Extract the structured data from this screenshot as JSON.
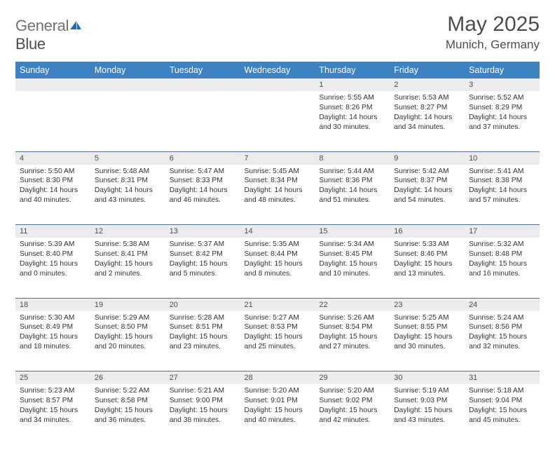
{
  "brand": {
    "general": "General",
    "blue": "Blue"
  },
  "title": "May 2025",
  "location": "Munich, Germany",
  "colors": {
    "header_bg": "#3e82c4",
    "header_text": "#ffffff",
    "daynum_bg": "#ececec",
    "text": "#333333",
    "title_text": "#4b4e51",
    "row_border": "#4d6fa0",
    "logo_blue": "#1e6fb8"
  },
  "weekday_labels": [
    "Sunday",
    "Monday",
    "Tuesday",
    "Wednesday",
    "Thursday",
    "Friday",
    "Saturday"
  ],
  "weeks": [
    [
      null,
      null,
      null,
      null,
      {
        "d": "1",
        "sr": "5:55 AM",
        "ss": "8:26 PM",
        "dl": "14 hours and 30 minutes."
      },
      {
        "d": "2",
        "sr": "5:53 AM",
        "ss": "8:27 PM",
        "dl": "14 hours and 34 minutes."
      },
      {
        "d": "3",
        "sr": "5:52 AM",
        "ss": "8:29 PM",
        "dl": "14 hours and 37 minutes."
      }
    ],
    [
      {
        "d": "4",
        "sr": "5:50 AM",
        "ss": "8:30 PM",
        "dl": "14 hours and 40 minutes."
      },
      {
        "d": "5",
        "sr": "5:48 AM",
        "ss": "8:31 PM",
        "dl": "14 hours and 43 minutes."
      },
      {
        "d": "6",
        "sr": "5:47 AM",
        "ss": "8:33 PM",
        "dl": "14 hours and 46 minutes."
      },
      {
        "d": "7",
        "sr": "5:45 AM",
        "ss": "8:34 PM",
        "dl": "14 hours and 48 minutes."
      },
      {
        "d": "8",
        "sr": "5:44 AM",
        "ss": "8:36 PM",
        "dl": "14 hours and 51 minutes."
      },
      {
        "d": "9",
        "sr": "5:42 AM",
        "ss": "8:37 PM",
        "dl": "14 hours and 54 minutes."
      },
      {
        "d": "10",
        "sr": "5:41 AM",
        "ss": "8:38 PM",
        "dl": "14 hours and 57 minutes."
      }
    ],
    [
      {
        "d": "11",
        "sr": "5:39 AM",
        "ss": "8:40 PM",
        "dl": "15 hours and 0 minutes."
      },
      {
        "d": "12",
        "sr": "5:38 AM",
        "ss": "8:41 PM",
        "dl": "15 hours and 2 minutes."
      },
      {
        "d": "13",
        "sr": "5:37 AM",
        "ss": "8:42 PM",
        "dl": "15 hours and 5 minutes."
      },
      {
        "d": "14",
        "sr": "5:35 AM",
        "ss": "8:44 PM",
        "dl": "15 hours and 8 minutes."
      },
      {
        "d": "15",
        "sr": "5:34 AM",
        "ss": "8:45 PM",
        "dl": "15 hours and 10 minutes."
      },
      {
        "d": "16",
        "sr": "5:33 AM",
        "ss": "8:46 PM",
        "dl": "15 hours and 13 minutes."
      },
      {
        "d": "17",
        "sr": "5:32 AM",
        "ss": "8:48 PM",
        "dl": "15 hours and 16 minutes."
      }
    ],
    [
      {
        "d": "18",
        "sr": "5:30 AM",
        "ss": "8:49 PM",
        "dl": "15 hours and 18 minutes."
      },
      {
        "d": "19",
        "sr": "5:29 AM",
        "ss": "8:50 PM",
        "dl": "15 hours and 20 minutes."
      },
      {
        "d": "20",
        "sr": "5:28 AM",
        "ss": "8:51 PM",
        "dl": "15 hours and 23 minutes."
      },
      {
        "d": "21",
        "sr": "5:27 AM",
        "ss": "8:53 PM",
        "dl": "15 hours and 25 minutes."
      },
      {
        "d": "22",
        "sr": "5:26 AM",
        "ss": "8:54 PM",
        "dl": "15 hours and 27 minutes."
      },
      {
        "d": "23",
        "sr": "5:25 AM",
        "ss": "8:55 PM",
        "dl": "15 hours and 30 minutes."
      },
      {
        "d": "24",
        "sr": "5:24 AM",
        "ss": "8:56 PM",
        "dl": "15 hours and 32 minutes."
      }
    ],
    [
      {
        "d": "25",
        "sr": "5:23 AM",
        "ss": "8:57 PM",
        "dl": "15 hours and 34 minutes."
      },
      {
        "d": "26",
        "sr": "5:22 AM",
        "ss": "8:58 PM",
        "dl": "15 hours and 36 minutes."
      },
      {
        "d": "27",
        "sr": "5:21 AM",
        "ss": "9:00 PM",
        "dl": "15 hours and 38 minutes."
      },
      {
        "d": "28",
        "sr": "5:20 AM",
        "ss": "9:01 PM",
        "dl": "15 hours and 40 minutes."
      },
      {
        "d": "29",
        "sr": "5:20 AM",
        "ss": "9:02 PM",
        "dl": "15 hours and 42 minutes."
      },
      {
        "d": "30",
        "sr": "5:19 AM",
        "ss": "9:03 PM",
        "dl": "15 hours and 43 minutes."
      },
      {
        "d": "31",
        "sr": "5:18 AM",
        "ss": "9:04 PM",
        "dl": "15 hours and 45 minutes."
      }
    ]
  ],
  "labels": {
    "sunrise": "Sunrise: ",
    "sunset": "Sunset: ",
    "daylight": "Daylight: "
  }
}
